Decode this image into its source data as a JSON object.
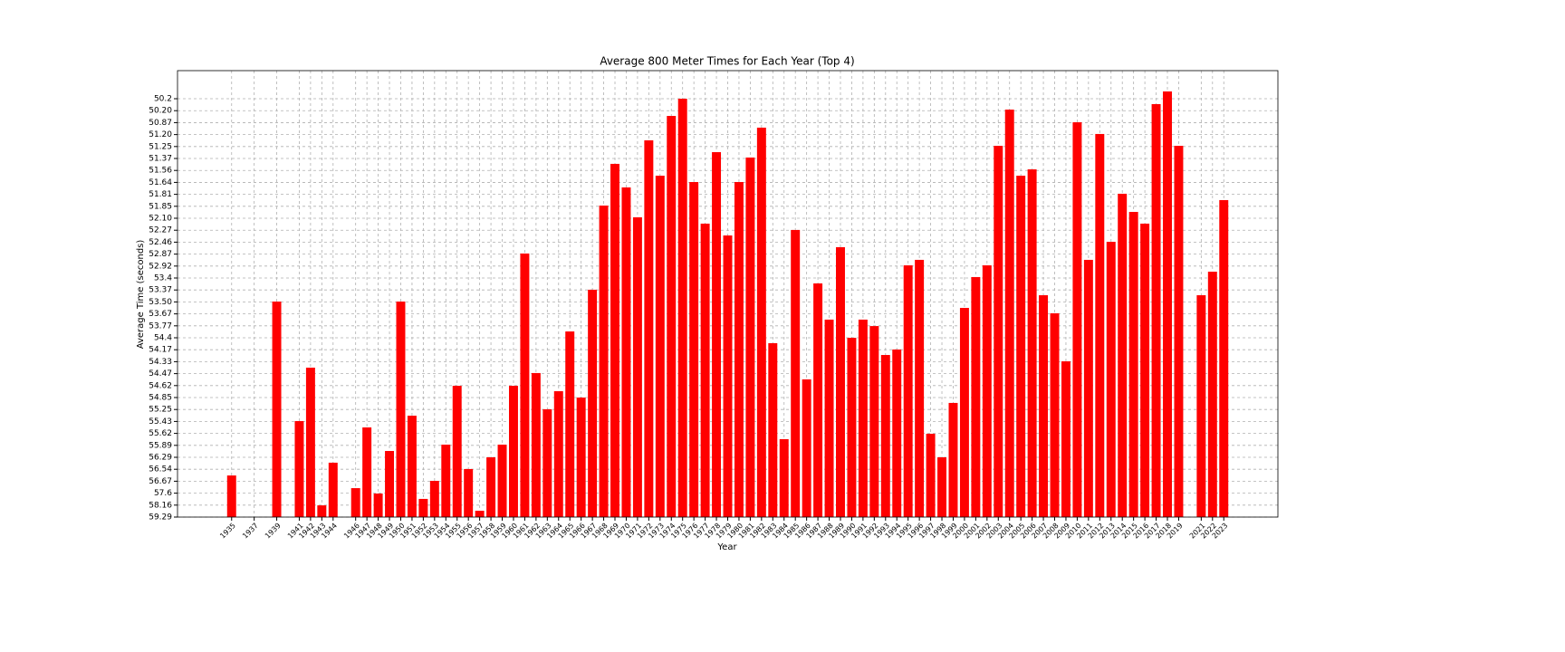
{
  "chart_data": {
    "type": "bar",
    "title": "Average 800 Meter Times for Each Year (Top 4)",
    "x_label": "Year",
    "y_label": "Average Time (seconds)",
    "color": "#ff0000",
    "grid": true,
    "x": [
      1935,
      1937,
      1939,
      1941,
      1942,
      1943,
      1944,
      1946,
      1947,
      1948,
      1949,
      1950,
      1951,
      1952,
      1953,
      1954,
      1955,
      1956,
      1957,
      1958,
      1959,
      1960,
      1961,
      1962,
      1963,
      1964,
      1965,
      1966,
      1967,
      1968,
      1969,
      1970,
      1971,
      1972,
      1973,
      1974,
      1975,
      1976,
      1977,
      1978,
      1979,
      1980,
      1981,
      1982,
      1983,
      1984,
      1985,
      1986,
      1987,
      1988,
      1989,
      1990,
      1991,
      1992,
      1993,
      1994,
      1995,
      1996,
      1997,
      1998,
      1999,
      2000,
      2001,
      2002,
      2003,
      2004,
      2005,
      2006,
      2007,
      2008,
      2009,
      2010,
      2011,
      2012,
      2013,
      2014,
      2015,
      2016,
      2017,
      2018,
      2019,
      2021,
      2022,
      2023
    ],
    "values": [
      3.48,
      0,
      18.03,
      8.03,
      12.5,
      0.98,
      4.55,
      2.42,
      7.5,
      1.97,
      5.53,
      18.03,
      8.48,
      1.52,
      3.03,
      6.06,
      10.98,
      4.02,
      0.53,
      5.0,
      6.06,
      10.98,
      22.05,
      12.05,
      9.02,
      10.53,
      15.53,
      10.0,
      19.02,
      26.06,
      29.55,
      27.58,
      25.08,
      31.52,
      28.56,
      33.56,
      35.0,
      28.03,
      24.55,
      30.53,
      23.56,
      28.03,
      30.08,
      32.58,
      14.55,
      6.52,
      24.02,
      11.52,
      19.55,
      16.52,
      22.58,
      15.0,
      16.52,
      15.98,
      13.56,
      14.02,
      21.06,
      21.52,
      6.97,
      5.0,
      9.55,
      17.5,
      20.08,
      21.06,
      31.06,
      34.09,
      28.56,
      29.09,
      18.56,
      17.05,
      13.03,
      33.03,
      21.52,
      32.05,
      23.03,
      27.05,
      25.53,
      24.55,
      34.55,
      35.61,
      31.06,
      18.56,
      20.53,
      26.52
    ],
    "xlim": [
      1930.2,
      2027.8
    ],
    "xticks": [
      1935,
      1937,
      1939,
      1941,
      1942,
      1943,
      1944,
      1946,
      1947,
      1948,
      1949,
      1950,
      1951,
      1952,
      1953,
      1954,
      1955,
      1956,
      1957,
      1958,
      1959,
      1960,
      1961,
      1962,
      1963,
      1964,
      1965,
      1966,
      1967,
      1968,
      1969,
      1970,
      1971,
      1972,
      1973,
      1974,
      1975,
      1976,
      1977,
      1978,
      1979,
      1980,
      1981,
      1982,
      1983,
      1984,
      1985,
      1986,
      1987,
      1988,
      1989,
      1990,
      1991,
      1992,
      1993,
      1994,
      1995,
      1996,
      1997,
      1998,
      1999,
      2000,
      2001,
      2002,
      2003,
      2004,
      2005,
      2006,
      2007,
      2008,
      2009,
      2010,
      2011,
      2012,
      2013,
      2014,
      2015,
      2016,
      2017,
      2018,
      2019,
      2021,
      2022,
      2023
    ],
    "ylim": [
      0,
      37.35
    ],
    "yticks": [
      {
        "value": 0,
        "label": "59.29"
      },
      {
        "value": 1,
        "label": "58.16"
      },
      {
        "value": 2,
        "label": "57.6"
      },
      {
        "value": 3,
        "label": "56.67"
      },
      {
        "value": 4,
        "label": "56.54"
      },
      {
        "value": 5,
        "label": "56.29"
      },
      {
        "value": 6,
        "label": "55.89"
      },
      {
        "value": 7,
        "label": "55.62"
      },
      {
        "value": 8,
        "label": "55.43"
      },
      {
        "value": 9,
        "label": "55.25"
      },
      {
        "value": 10,
        "label": "54.85"
      },
      {
        "value": 11,
        "label": "54.62"
      },
      {
        "value": 12,
        "label": "54.47"
      },
      {
        "value": 13,
        "label": "54.33"
      },
      {
        "value": 14,
        "label": "54.17"
      },
      {
        "value": 15,
        "label": "54.4"
      },
      {
        "value": 16,
        "label": "53.77"
      },
      {
        "value": 17,
        "label": "53.67"
      },
      {
        "value": 18,
        "label": "53.50"
      },
      {
        "value": 19,
        "label": "53.37"
      },
      {
        "value": 20,
        "label": "53.4"
      },
      {
        "value": 21,
        "label": "52.92"
      },
      {
        "value": 22,
        "label": "52.87"
      },
      {
        "value": 23,
        "label": "52.46"
      },
      {
        "value": 24,
        "label": "52.27"
      },
      {
        "value": 25,
        "label": "52.10"
      },
      {
        "value": 26,
        "label": "51.85"
      },
      {
        "value": 27,
        "label": "51.81"
      },
      {
        "value": 28,
        "label": "51.64"
      },
      {
        "value": 29,
        "label": "51.56"
      },
      {
        "value": 30,
        "label": "51.37"
      },
      {
        "value": 31,
        "label": "51.25"
      },
      {
        "value": 32,
        "label": "51.20"
      },
      {
        "value": 33,
        "label": "50.87"
      },
      {
        "value": 34,
        "label": "50.20"
      },
      {
        "value": 35,
        "label": "50.2"
      }
    ]
  }
}
